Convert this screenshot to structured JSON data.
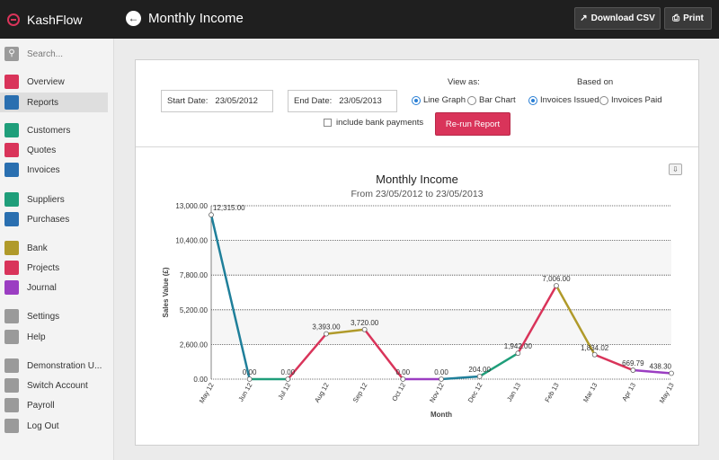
{
  "app": {
    "brand": "KashFlow"
  },
  "header": {
    "title": "Monthly Income",
    "download_csv": "Download CSV",
    "print": "Print"
  },
  "sidebar": {
    "search_placeholder": "Search...",
    "items": [
      {
        "label": "Overview",
        "icon": "gauge-icon",
        "color": "#d9345a"
      },
      {
        "label": "Reports",
        "icon": "bar-chart-icon",
        "color": "#2a6fb0",
        "active": true
      },
      {
        "label": "Customers",
        "icon": "users-icon",
        "color": "#1f9e7a"
      },
      {
        "label": "Quotes",
        "icon": "car-icon",
        "color": "#d9345a"
      },
      {
        "label": "Invoices",
        "icon": "download-icon",
        "color": "#2a6fb0"
      },
      {
        "label": "Suppliers",
        "icon": "users-icon",
        "color": "#1f9e7a"
      },
      {
        "label": "Purchases",
        "icon": "shopping-icon",
        "color": "#2a6fb0"
      },
      {
        "label": "Bank",
        "icon": "card-icon",
        "color": "#b09a2a"
      },
      {
        "label": "Projects",
        "icon": "briefcase-icon",
        "color": "#d9345a"
      },
      {
        "label": "Journal",
        "icon": "journal-icon",
        "color": "#9b3ec2"
      },
      {
        "label": "Settings",
        "icon": "gear-icon",
        "color": "#9a9a9a"
      },
      {
        "label": "Help",
        "icon": "question-icon",
        "color": "#9a9a9a"
      },
      {
        "label": "Demonstration U...",
        "icon": "user-icon",
        "color": "#9a9a9a"
      },
      {
        "label": "Switch Account",
        "icon": "switch-icon",
        "color": "#9a9a9a"
      },
      {
        "label": "Payroll",
        "icon": "payroll-icon",
        "color": "#9a9a9a"
      },
      {
        "label": "Log Out",
        "icon": "logout-icon",
        "color": "#9a9a9a"
      }
    ]
  },
  "controls": {
    "start_label": "Start Date:",
    "start_value": "23/05/2012",
    "end_label": "End Date:",
    "end_value": "23/05/2013",
    "view_as": "View as:",
    "line_graph": "Line Graph",
    "bar_chart": "Bar Chart",
    "based_on": "Based on",
    "invoices_issued": "Invoices Issued",
    "invoices_paid": "Invoices Paid",
    "include_bank": "include bank payments",
    "rerun": "Re-run Report"
  },
  "chart_data": {
    "type": "line",
    "title": "Monthly Income",
    "subtitle": "From 23/05/2012 to 23/05/2013",
    "xlabel": "Month",
    "ylabel": "Sales Value (£)",
    "ylim": [
      0,
      13000
    ],
    "yticks": [
      "0.00",
      "2,600.00",
      "5,200.00",
      "7,800.00",
      "10,400.00",
      "13,000.00"
    ],
    "categories": [
      "May 12",
      "Jun 12",
      "Jul 12",
      "Aug 12",
      "Sep 12",
      "Oct 12",
      "Nov 12",
      "Dec 12",
      "Jan 13",
      "Feb 13",
      "Mar 13",
      "Apr 13",
      "May 13"
    ],
    "values": [
      12315,
      0,
      0,
      3393,
      3720,
      0,
      0,
      204,
      1942,
      7006,
      1834.02,
      669.79,
      438.3
    ],
    "value_labels": [
      "12,315.00",
      "0.00",
      "0.00",
      "3,393.00",
      "3,720.00",
      "0.00",
      "0.00",
      "204.00",
      "1,942.00",
      "7,006.00",
      "1,834.02",
      "669.79",
      "438.30"
    ],
    "segment_colors": [
      "#1f7f9a",
      "#1f9e7a",
      "#d9345a",
      "#b09a2a",
      "#d9345a",
      "#9b3ec2",
      "#1f7f9a",
      "#1f9e7a",
      "#d9345a",
      "#b09a2a",
      "#d9345a",
      "#9b3ec2"
    ]
  }
}
